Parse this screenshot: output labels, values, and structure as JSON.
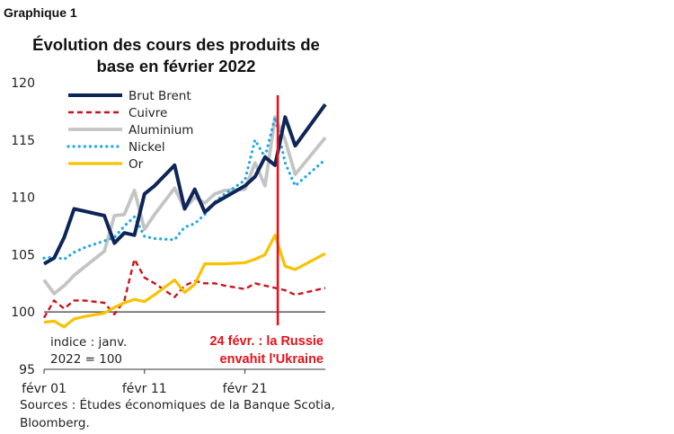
{
  "figure_label": "Graphique 1",
  "title_lines": [
    "Évolution des cours des produits de",
    "base en février 2022"
  ],
  "source": "Sources : Études économiques de la Banque Scotia, Bloomberg.",
  "colors": {
    "brent": "#0d2557",
    "cuivre": "#c8151d",
    "aluminium": "#c4c4c4",
    "nickel": "#22a7e6",
    "or": "#f8c200",
    "event": "#e3121b",
    "baseline": "#666666"
  },
  "chart_data": {
    "type": "line",
    "title": "Évolution des cours des produits de base en février 2022",
    "x_ticks": [
      {
        "label": "févr 01",
        "index": 0
      },
      {
        "label": "févr 11",
        "index": 10
      },
      {
        "label": "févr 21",
        "index": 20
      }
    ],
    "ylim": [
      95,
      120
    ],
    "y_ticks": [
      95,
      100,
      105,
      110,
      115,
      120
    ],
    "baseline": 100,
    "annotation_note": [
      "indice : janv.",
      "2022 = 100"
    ],
    "event": {
      "index": 23,
      "lines": [
        "24 févr. : la Russie",
        "envahit l'Ukraine"
      ]
    },
    "legend_position": "top-left",
    "series": [
      {
        "name": "Brut Brent",
        "key": "brent",
        "x": [
          0,
          1,
          2,
          3,
          4,
          6,
          7,
          8,
          9,
          10,
          11,
          13,
          14,
          15,
          16,
          17,
          18,
          20,
          21,
          22,
          23,
          24,
          25,
          28
        ],
        "values": [
          104.2,
          104.7,
          106.5,
          109.0,
          108.8,
          108.4,
          106.0,
          106.9,
          106.7,
          110.3,
          111.0,
          112.8,
          109.0,
          110.7,
          108.7,
          109.5,
          110.0,
          111.0,
          111.8,
          113.5,
          112.8,
          117.0,
          114.5,
          118.1
        ]
      },
      {
        "name": "Cuivre",
        "key": "cuivre",
        "x": [
          0,
          1,
          2,
          3,
          4,
          6,
          7,
          8,
          9,
          10,
          11,
          13,
          14,
          15,
          16,
          17,
          18,
          20,
          21,
          22,
          23,
          24,
          25,
          28
        ],
        "values": [
          99.5,
          101.0,
          100.3,
          101.0,
          101.0,
          100.8,
          99.8,
          101.0,
          104.6,
          103.0,
          102.5,
          101.3,
          102.3,
          102.7,
          102.5,
          102.5,
          102.3,
          102.0,
          102.5,
          102.3,
          102.1,
          101.9,
          101.5,
          102.1
        ]
      },
      {
        "name": "Aluminium",
        "key": "aluminium",
        "x": [
          0,
          1,
          2,
          3,
          4,
          6,
          7,
          8,
          9,
          10,
          11,
          13,
          14,
          15,
          16,
          17,
          18,
          20,
          21,
          22,
          23,
          24,
          25,
          28
        ],
        "values": [
          102.8,
          101.6,
          102.3,
          103.2,
          103.9,
          105.3,
          108.4,
          108.5,
          110.6,
          107.2,
          108.5,
          110.8,
          109.0,
          110.0,
          109.5,
          110.3,
          110.6,
          110.7,
          113.0,
          111.0,
          117.0,
          115.0,
          112.0,
          115.2
        ]
      },
      {
        "name": "Nickel",
        "key": "nickel",
        "x": [
          0,
          1,
          2,
          3,
          4,
          6,
          7,
          8,
          9,
          10,
          11,
          13,
          14,
          15,
          16,
          17,
          18,
          20,
          21,
          22,
          23,
          24,
          25,
          28
        ],
        "values": [
          104.7,
          104.8,
          104.6,
          105.2,
          105.6,
          106.2,
          106.5,
          107.5,
          108.3,
          106.6,
          106.4,
          106.3,
          107.4,
          107.7,
          108.5,
          109.6,
          110.3,
          111.5,
          115.0,
          113.5,
          117.0,
          113.0,
          111.0,
          113.3
        ]
      },
      {
        "name": "Or",
        "key": "or",
        "x": [
          0,
          1,
          2,
          3,
          4,
          6,
          7,
          8,
          9,
          10,
          11,
          13,
          14,
          15,
          16,
          17,
          18,
          20,
          21,
          22,
          23,
          24,
          25,
          28
        ],
        "values": [
          99.1,
          99.2,
          98.7,
          99.4,
          99.6,
          99.9,
          100.4,
          100.8,
          101.1,
          100.9,
          101.5,
          102.8,
          101.7,
          102.4,
          104.2,
          104.2,
          104.2,
          104.3,
          104.6,
          105.0,
          106.7,
          104.0,
          103.7,
          105.1
        ]
      }
    ]
  }
}
